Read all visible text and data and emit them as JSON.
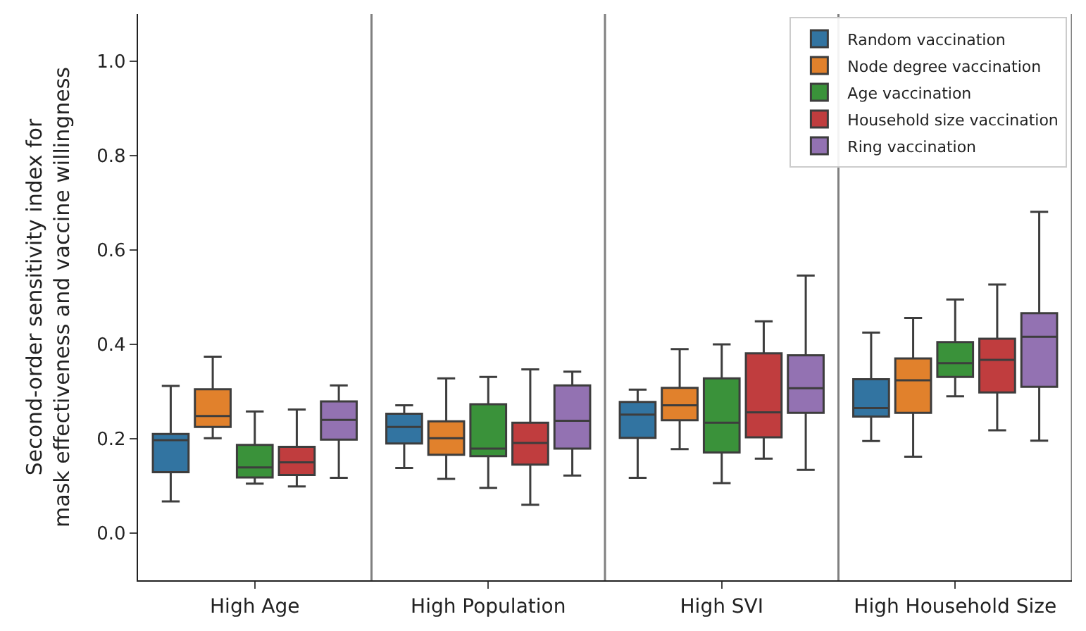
{
  "chart_data": {
    "type": "box",
    "categories": [
      "High Age",
      "High Population",
      "High SVI",
      "High Household Size"
    ],
    "ylabel": "Second-order sensitivity index for\nmask effectiveness and vaccine willingness",
    "ylim": [
      -0.1,
      1.1
    ],
    "yticks": [
      {
        "value": 0,
        "label": "0.0"
      },
      0.2,
      0.4,
      0.6,
      0.8,
      {
        "value": 1,
        "label": "1.0"
      }
    ],
    "legend": "top right",
    "grid": false,
    "series": [
      {
        "name": "Random vaccination",
        "color": "#3274a1",
        "boxes": [
          {
            "low": 0.067,
            "q1": 0.129,
            "median": 0.197,
            "q3": 0.21,
            "high": 0.312
          },
          {
            "low": 0.138,
            "q1": 0.19,
            "median": 0.225,
            "q3": 0.253,
            "high": 0.271
          },
          {
            "low": 0.117,
            "q1": 0.202,
            "median": 0.251,
            "q3": 0.278,
            "high": 0.304
          },
          {
            "low": 0.195,
            "q1": 0.247,
            "median": 0.265,
            "q3": 0.326,
            "high": 0.425
          }
        ]
      },
      {
        "name": "Node degree vaccination",
        "color": "#e1812c",
        "boxes": [
          {
            "low": 0.201,
            "q1": 0.225,
            "median": 0.248,
            "q3": 0.305,
            "high": 0.374
          },
          {
            "low": 0.115,
            "q1": 0.166,
            "median": 0.201,
            "q3": 0.237,
            "high": 0.328
          },
          {
            "low": 0.178,
            "q1": 0.239,
            "median": 0.271,
            "q3": 0.308,
            "high": 0.39
          },
          {
            "low": 0.162,
            "q1": 0.255,
            "median": 0.324,
            "q3": 0.37,
            "high": 0.456
          }
        ]
      },
      {
        "name": "Age vaccination",
        "color": "#3a923a",
        "boxes": [
          {
            "low": 0.105,
            "q1": 0.118,
            "median": 0.139,
            "q3": 0.187,
            "high": 0.258
          },
          {
            "low": 0.096,
            "q1": 0.163,
            "median": 0.179,
            "q3": 0.273,
            "high": 0.331
          },
          {
            "low": 0.106,
            "q1": 0.171,
            "median": 0.234,
            "q3": 0.328,
            "high": 0.4
          },
          {
            "low": 0.29,
            "q1": 0.331,
            "median": 0.36,
            "q3": 0.405,
            "high": 0.495
          }
        ]
      },
      {
        "name": "Household size vaccination",
        "color": "#c03d3e",
        "boxes": [
          {
            "low": 0.099,
            "q1": 0.123,
            "median": 0.15,
            "q3": 0.183,
            "high": 0.262
          },
          {
            "low": 0.06,
            "q1": 0.145,
            "median": 0.191,
            "q3": 0.234,
            "high": 0.347
          },
          {
            "low": 0.158,
            "q1": 0.203,
            "median": 0.256,
            "q3": 0.381,
            "high": 0.449
          },
          {
            "low": 0.218,
            "q1": 0.298,
            "median": 0.367,
            "q3": 0.412,
            "high": 0.527
          }
        ]
      },
      {
        "name": "Ring vaccination",
        "color": "#9372b2",
        "boxes": [
          {
            "low": 0.117,
            "q1": 0.198,
            "median": 0.24,
            "q3": 0.279,
            "high": 0.313
          },
          {
            "low": 0.122,
            "q1": 0.179,
            "median": 0.238,
            "q3": 0.313,
            "high": 0.342
          },
          {
            "low": 0.134,
            "q1": 0.255,
            "median": 0.307,
            "q3": 0.377,
            "high": 0.546
          },
          {
            "low": 0.196,
            "q1": 0.31,
            "median": 0.416,
            "q3": 0.466,
            "high": 0.681
          }
        ]
      }
    ]
  }
}
